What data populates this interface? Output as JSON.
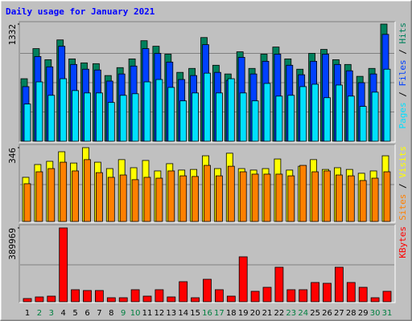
{
  "chart_data": [
    {
      "type": "bar",
      "title": "Daily usage for January 2021",
      "ylim": [
        0,
        1332
      ],
      "yticks": [
        1332
      ],
      "series": [
        {
          "name": "Hits",
          "color": "#00805c",
          "values": [
            711,
            1053,
            927,
            1152,
            936,
            891,
            882,
            747,
            837,
            936,
            1143,
            1080,
            990,
            783,
            828,
            1179,
            864,
            765,
            1017,
            828,
            990,
            1071,
            936,
            819,
            999,
            1044,
            927,
            873,
            738,
            828,
            1332
          ]
        },
        {
          "name": "Files",
          "color": "#0040ff",
          "values": [
            621,
            963,
            846,
            1080,
            873,
            819,
            810,
            684,
            765,
            855,
            1053,
            999,
            900,
            702,
            747,
            1098,
            783,
            693,
            954,
            765,
            909,
            990,
            864,
            756,
            909,
            990,
            873,
            801,
            666,
            765,
            1215
          ]
        },
        {
          "name": "Pages",
          "color": "#00e0ff",
          "values": [
            423,
            675,
            522,
            711,
            576,
            549,
            549,
            441,
            522,
            540,
            675,
            702,
            612,
            459,
            549,
            774,
            549,
            711,
            549,
            459,
            657,
            513,
            522,
            621,
            648,
            495,
            639,
            513,
            396,
            558,
            819
          ]
        }
      ]
    },
    {
      "type": "bar",
      "ylim": [
        0,
        346
      ],
      "yticks": [
        346
      ],
      "series": [
        {
          "name": "Visits",
          "color": "#ffff00",
          "values": [
            207,
            267,
            282,
            327,
            274,
            346,
            278,
            248,
            290,
            252,
            286,
            237,
            271,
            241,
            244,
            308,
            248,
            320,
            248,
            241,
            248,
            293,
            241,
            259,
            290,
            244,
            252,
            244,
            226,
            237,
            308
          ]
        },
        {
          "name": "Sites",
          "color": "#ff8000",
          "values": [
            177,
            233,
            248,
            278,
            237,
            290,
            229,
            207,
            218,
            196,
            207,
            203,
            237,
            214,
            211,
            263,
            214,
            259,
            233,
            222,
            222,
            222,
            214,
            263,
            233,
            237,
            218,
            214,
            192,
            203,
            233
          ]
        }
      ]
    },
    {
      "type": "bar",
      "ylim": [
        0,
        389969
      ],
      "yticks": [
        389969
      ],
      "categories": [
        "1",
        "2",
        "3",
        "4",
        "5",
        "6",
        "7",
        "8",
        "9",
        "10",
        "11",
        "12",
        "13",
        "14",
        "15",
        "16",
        "17",
        "18",
        "19",
        "20",
        "21",
        "22",
        "23",
        "24",
        "25",
        "26",
        "27",
        "28",
        "29",
        "30",
        "31"
      ],
      "label_colors": [
        "#000000",
        "#008040",
        "#008040",
        "#000000",
        "#000000",
        "#000000",
        "#000000",
        "#000000",
        "#008040",
        "#008040",
        "#000000",
        "#000000",
        "#000000",
        "#000000",
        "#000000",
        "#008040",
        "#008040",
        "#000000",
        "#000000",
        "#000000",
        "#000000",
        "#000000",
        "#008040",
        "#008040",
        "#000000",
        "#000000",
        "#000000",
        "#000000",
        "#000000",
        "#008040",
        "#008040"
      ],
      "series": [
        {
          "name": "KBytes",
          "color": "#ff0000",
          "values": [
            16956,
            25434,
            29673,
            389969,
            63585,
            59346,
            59346,
            21195,
            21195,
            63585,
            29673,
            63585,
            25434,
            105975,
            21195,
            118692,
            63585,
            29673,
            237384,
            55107,
            76302,
            182277,
            63585,
            63585,
            101736,
            97497,
            182277,
            101736,
            76302,
            21195,
            55107
          ]
        }
      ]
    }
  ]
}
